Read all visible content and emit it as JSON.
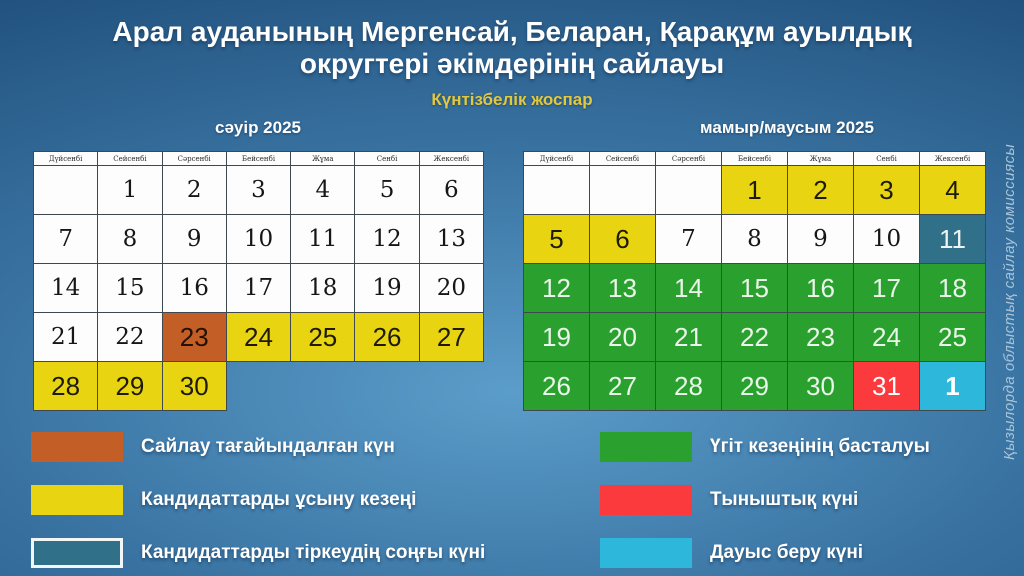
{
  "title_line1": "Арал ауданының Мергенсай, Беларан, Қарақұм ауылдық",
  "title_line2": "округтері әкімдерінің сайлауы",
  "subtitle": "Күнтізбелік жоспар",
  "watermark": "Қызылорда облыстық сайлау комиссиясы",
  "weekdays": [
    "Дүйсенбі",
    "Сейсенбі",
    "Сәрсенбі",
    "Бейсенбі",
    "Жұма",
    "Сенбі",
    "Жексенбі"
  ],
  "colors": {
    "orange": "#c45e27",
    "yellow": "#e8d411",
    "teal": "#317089",
    "green": "#2aa12e",
    "red": "#fb3a3e",
    "cyan": "#2db7da",
    "bg_center": "#5b9dca",
    "bg_edge": "#1f4e7a",
    "title": "#ffffff",
    "subtitle": "#e2c83d",
    "watermark": "#a8c4d8"
  },
  "calendars": [
    {
      "month_label": "сәуір 2025",
      "rows": [
        [
          {
            "d": "",
            "t": "plain"
          },
          {
            "d": "1",
            "t": "plain"
          },
          {
            "d": "2",
            "t": "plain"
          },
          {
            "d": "3",
            "t": "plain"
          },
          {
            "d": "4",
            "t": "plain"
          },
          {
            "d": "5",
            "t": "plain"
          },
          {
            "d": "6",
            "t": "plain"
          }
        ],
        [
          {
            "d": "7",
            "t": "plain"
          },
          {
            "d": "8",
            "t": "plain"
          },
          {
            "d": "9",
            "t": "plain"
          },
          {
            "d": "10",
            "t": "plain"
          },
          {
            "d": "11",
            "t": "plain"
          },
          {
            "d": "12",
            "t": "plain"
          },
          {
            "d": "13",
            "t": "plain"
          }
        ],
        [
          {
            "d": "14",
            "t": "plain"
          },
          {
            "d": "15",
            "t": "plain"
          },
          {
            "d": "16",
            "t": "plain"
          },
          {
            "d": "17",
            "t": "plain"
          },
          {
            "d": "18",
            "t": "plain"
          },
          {
            "d": "19",
            "t": "plain"
          },
          {
            "d": "20",
            "t": "plain"
          }
        ],
        [
          {
            "d": "21",
            "t": "plain"
          },
          {
            "d": "22",
            "t": "plain"
          },
          {
            "d": "23",
            "t": "orange"
          },
          {
            "d": "24",
            "t": "yellow"
          },
          {
            "d": "25",
            "t": "yellow"
          },
          {
            "d": "26",
            "t": "yellow"
          },
          {
            "d": "27",
            "t": "yellow"
          }
        ],
        [
          {
            "d": "28",
            "t": "yellow"
          },
          {
            "d": "29",
            "t": "yellow"
          },
          {
            "d": "30",
            "t": "yellow"
          },
          {
            "d": "",
            "t": "none"
          },
          {
            "d": "",
            "t": "none"
          },
          {
            "d": "",
            "t": "none"
          },
          {
            "d": "",
            "t": "none"
          }
        ]
      ]
    },
    {
      "month_label": "мамыр/маусым 2025",
      "rows": [
        [
          {
            "d": "",
            "t": "plain"
          },
          {
            "d": "",
            "t": "plain"
          },
          {
            "d": "",
            "t": "plain"
          },
          {
            "d": "1",
            "t": "yellow"
          },
          {
            "d": "2",
            "t": "yellow"
          },
          {
            "d": "3",
            "t": "yellow"
          },
          {
            "d": "4",
            "t": "yellow"
          }
        ],
        [
          {
            "d": "5",
            "t": "yellow"
          },
          {
            "d": "6",
            "t": "yellow"
          },
          {
            "d": "7",
            "t": "plain"
          },
          {
            "d": "8",
            "t": "plain"
          },
          {
            "d": "9",
            "t": "plain"
          },
          {
            "d": "10",
            "t": "plain"
          },
          {
            "d": "11",
            "t": "teal"
          }
        ],
        [
          {
            "d": "12",
            "t": "green"
          },
          {
            "d": "13",
            "t": "green"
          },
          {
            "d": "14",
            "t": "green"
          },
          {
            "d": "15",
            "t": "green"
          },
          {
            "d": "16",
            "t": "green"
          },
          {
            "d": "17",
            "t": "green"
          },
          {
            "d": "18",
            "t": "green"
          }
        ],
        [
          {
            "d": "19",
            "t": "green"
          },
          {
            "d": "20",
            "t": "green"
          },
          {
            "d": "21",
            "t": "green"
          },
          {
            "d": "22",
            "t": "green"
          },
          {
            "d": "23",
            "t": "green"
          },
          {
            "d": "24",
            "t": "green"
          },
          {
            "d": "25",
            "t": "green"
          }
        ],
        [
          {
            "d": "26",
            "t": "green"
          },
          {
            "d": "27",
            "t": "green"
          },
          {
            "d": "28",
            "t": "green"
          },
          {
            "d": "29",
            "t": "green"
          },
          {
            "d": "30",
            "t": "green"
          },
          {
            "d": "31",
            "t": "red"
          },
          {
            "d": "1",
            "t": "cyan",
            "b": true
          }
        ]
      ]
    }
  ],
  "legend": {
    "left": [
      {
        "color_key": "orange",
        "label": "Сайлау тағайындалған күн"
      },
      {
        "color_key": "yellow",
        "label": "Кандидаттарды ұсыну кезеңі"
      },
      {
        "color_key": "teal",
        "label": "Кандидаттарды тіркеудің соңғы күні",
        "bordered": true
      }
    ],
    "right": [
      {
        "color_key": "green",
        "label": "Үгіт кезеңінің басталуы"
      },
      {
        "color_key": "red",
        "label": "Тыныштық күні"
      },
      {
        "color_key": "cyan",
        "label": "Дауыс беру күні"
      }
    ]
  }
}
